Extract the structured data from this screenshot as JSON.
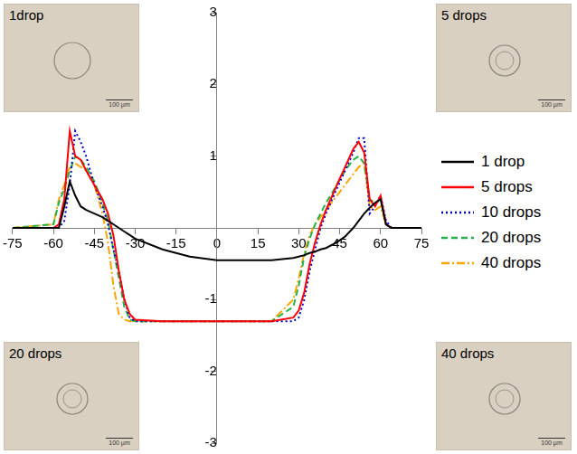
{
  "chart_data": {
    "type": "line",
    "x": [
      -75,
      -60,
      -58,
      -56,
      -54,
      -52,
      -50,
      -48,
      -45,
      -42,
      -40,
      -38,
      -36,
      -34,
      -32,
      -30,
      -20,
      -10,
      0,
      10,
      20,
      28,
      30,
      32,
      34,
      36,
      38,
      40,
      44,
      47,
      50,
      52,
      54,
      56,
      58,
      60,
      62,
      64,
      75
    ],
    "series": [
      {
        "name": "1 drop",
        "color": "#000000",
        "line_style": "solid",
        "values": [
          0,
          0,
          0,
          0.3,
          0.65,
          0.45,
          0.3,
          0.25,
          0.2,
          0.15,
          0.1,
          0.05,
          0,
          -0.05,
          -0.1,
          -0.15,
          -0.3,
          -0.4,
          -0.45,
          -0.45,
          -0.45,
          -0.42,
          -0.4,
          -0.38,
          -0.35,
          -0.33,
          -0.3,
          -0.28,
          -0.2,
          -0.12,
          0,
          0.1,
          0.2,
          0.28,
          0.35,
          0.4,
          0.05,
          0,
          0
        ]
      },
      {
        "name": "5 drops",
        "color": "#ff0000",
        "line_style": "solid",
        "values": [
          0,
          0,
          0.05,
          0.4,
          1.35,
          1.0,
          0.95,
          0.8,
          0.6,
          0.4,
          0.2,
          -0.1,
          -0.6,
          -1.0,
          -1.2,
          -1.28,
          -1.3,
          -1.3,
          -1.3,
          -1.3,
          -1.3,
          -1.25,
          -1.15,
          -0.9,
          -0.5,
          -0.2,
          0.05,
          0.25,
          0.6,
          0.85,
          1.1,
          1.2,
          1.05,
          0.4,
          0.3,
          0.45,
          0.05,
          0,
          0
        ]
      },
      {
        "name": "10 drops",
        "color": "#0000cc",
        "line_style": "dotted",
        "values": [
          0,
          0,
          0,
          0.1,
          0.6,
          1.35,
          1.2,
          1.0,
          0.6,
          0.3,
          0.05,
          -0.3,
          -0.6,
          -1.0,
          -1.25,
          -1.3,
          -1.3,
          -1.3,
          -1.3,
          -1.3,
          -1.3,
          -1.3,
          -1.25,
          -1.0,
          -0.6,
          -0.3,
          0,
          0.2,
          0.55,
          0.8,
          1.05,
          1.25,
          1.25,
          0.2,
          0.3,
          0.45,
          0.1,
          0,
          0
        ]
      },
      {
        "name": "20 drops",
        "color": "#22b14c",
        "line_style": "dashed",
        "values": [
          0,
          0.05,
          0.35,
          0.55,
          0.8,
          1.0,
          0.95,
          0.85,
          0.65,
          0.35,
          0.1,
          -0.3,
          -0.7,
          -1.1,
          -1.28,
          -1.3,
          -1.3,
          -1.3,
          -1.3,
          -1.3,
          -1.3,
          -1.1,
          -0.8,
          -0.4,
          -0.15,
          0.05,
          0.2,
          0.35,
          0.6,
          0.8,
          0.95,
          1.0,
          0.9,
          0.4,
          0.35,
          0.4,
          0.05,
          0,
          0
        ]
      },
      {
        "name": "40 drops",
        "color": "#ffa500",
        "line_style": "dashdot",
        "values": [
          0,
          0.05,
          0.4,
          0.6,
          0.85,
          0.9,
          0.85,
          0.8,
          0.6,
          0.2,
          -0.2,
          -0.8,
          -1.2,
          -1.28,
          -1.3,
          -1.3,
          -1.3,
          -1.3,
          -1.3,
          -1.3,
          -1.3,
          -1.0,
          -0.7,
          -0.35,
          -0.1,
          0.05,
          0.15,
          0.25,
          0.45,
          0.6,
          0.75,
          0.85,
          0.9,
          0.3,
          0.25,
          0.3,
          0.05,
          0,
          0
        ]
      }
    ],
    "xlim": [
      -75,
      75
    ],
    "xticks": [
      -75,
      -60,
      -45,
      -30,
      -15,
      0,
      15,
      30,
      45,
      60,
      75
    ],
    "ylim": [
      -3,
      3
    ],
    "yticks": [
      -3,
      -2,
      -1,
      1,
      2,
      3
    ],
    "grid": false,
    "legend": "right",
    "annotations": [
      {
        "text": "1drop",
        "scale_bar": "100 µm"
      },
      {
        "text": "5 drops",
        "scale_bar": "100 µm"
      },
      {
        "text": "20 drops",
        "scale_bar": "100 µm"
      },
      {
        "text": "40 drops",
        "scale_bar": "100 µm"
      }
    ]
  }
}
